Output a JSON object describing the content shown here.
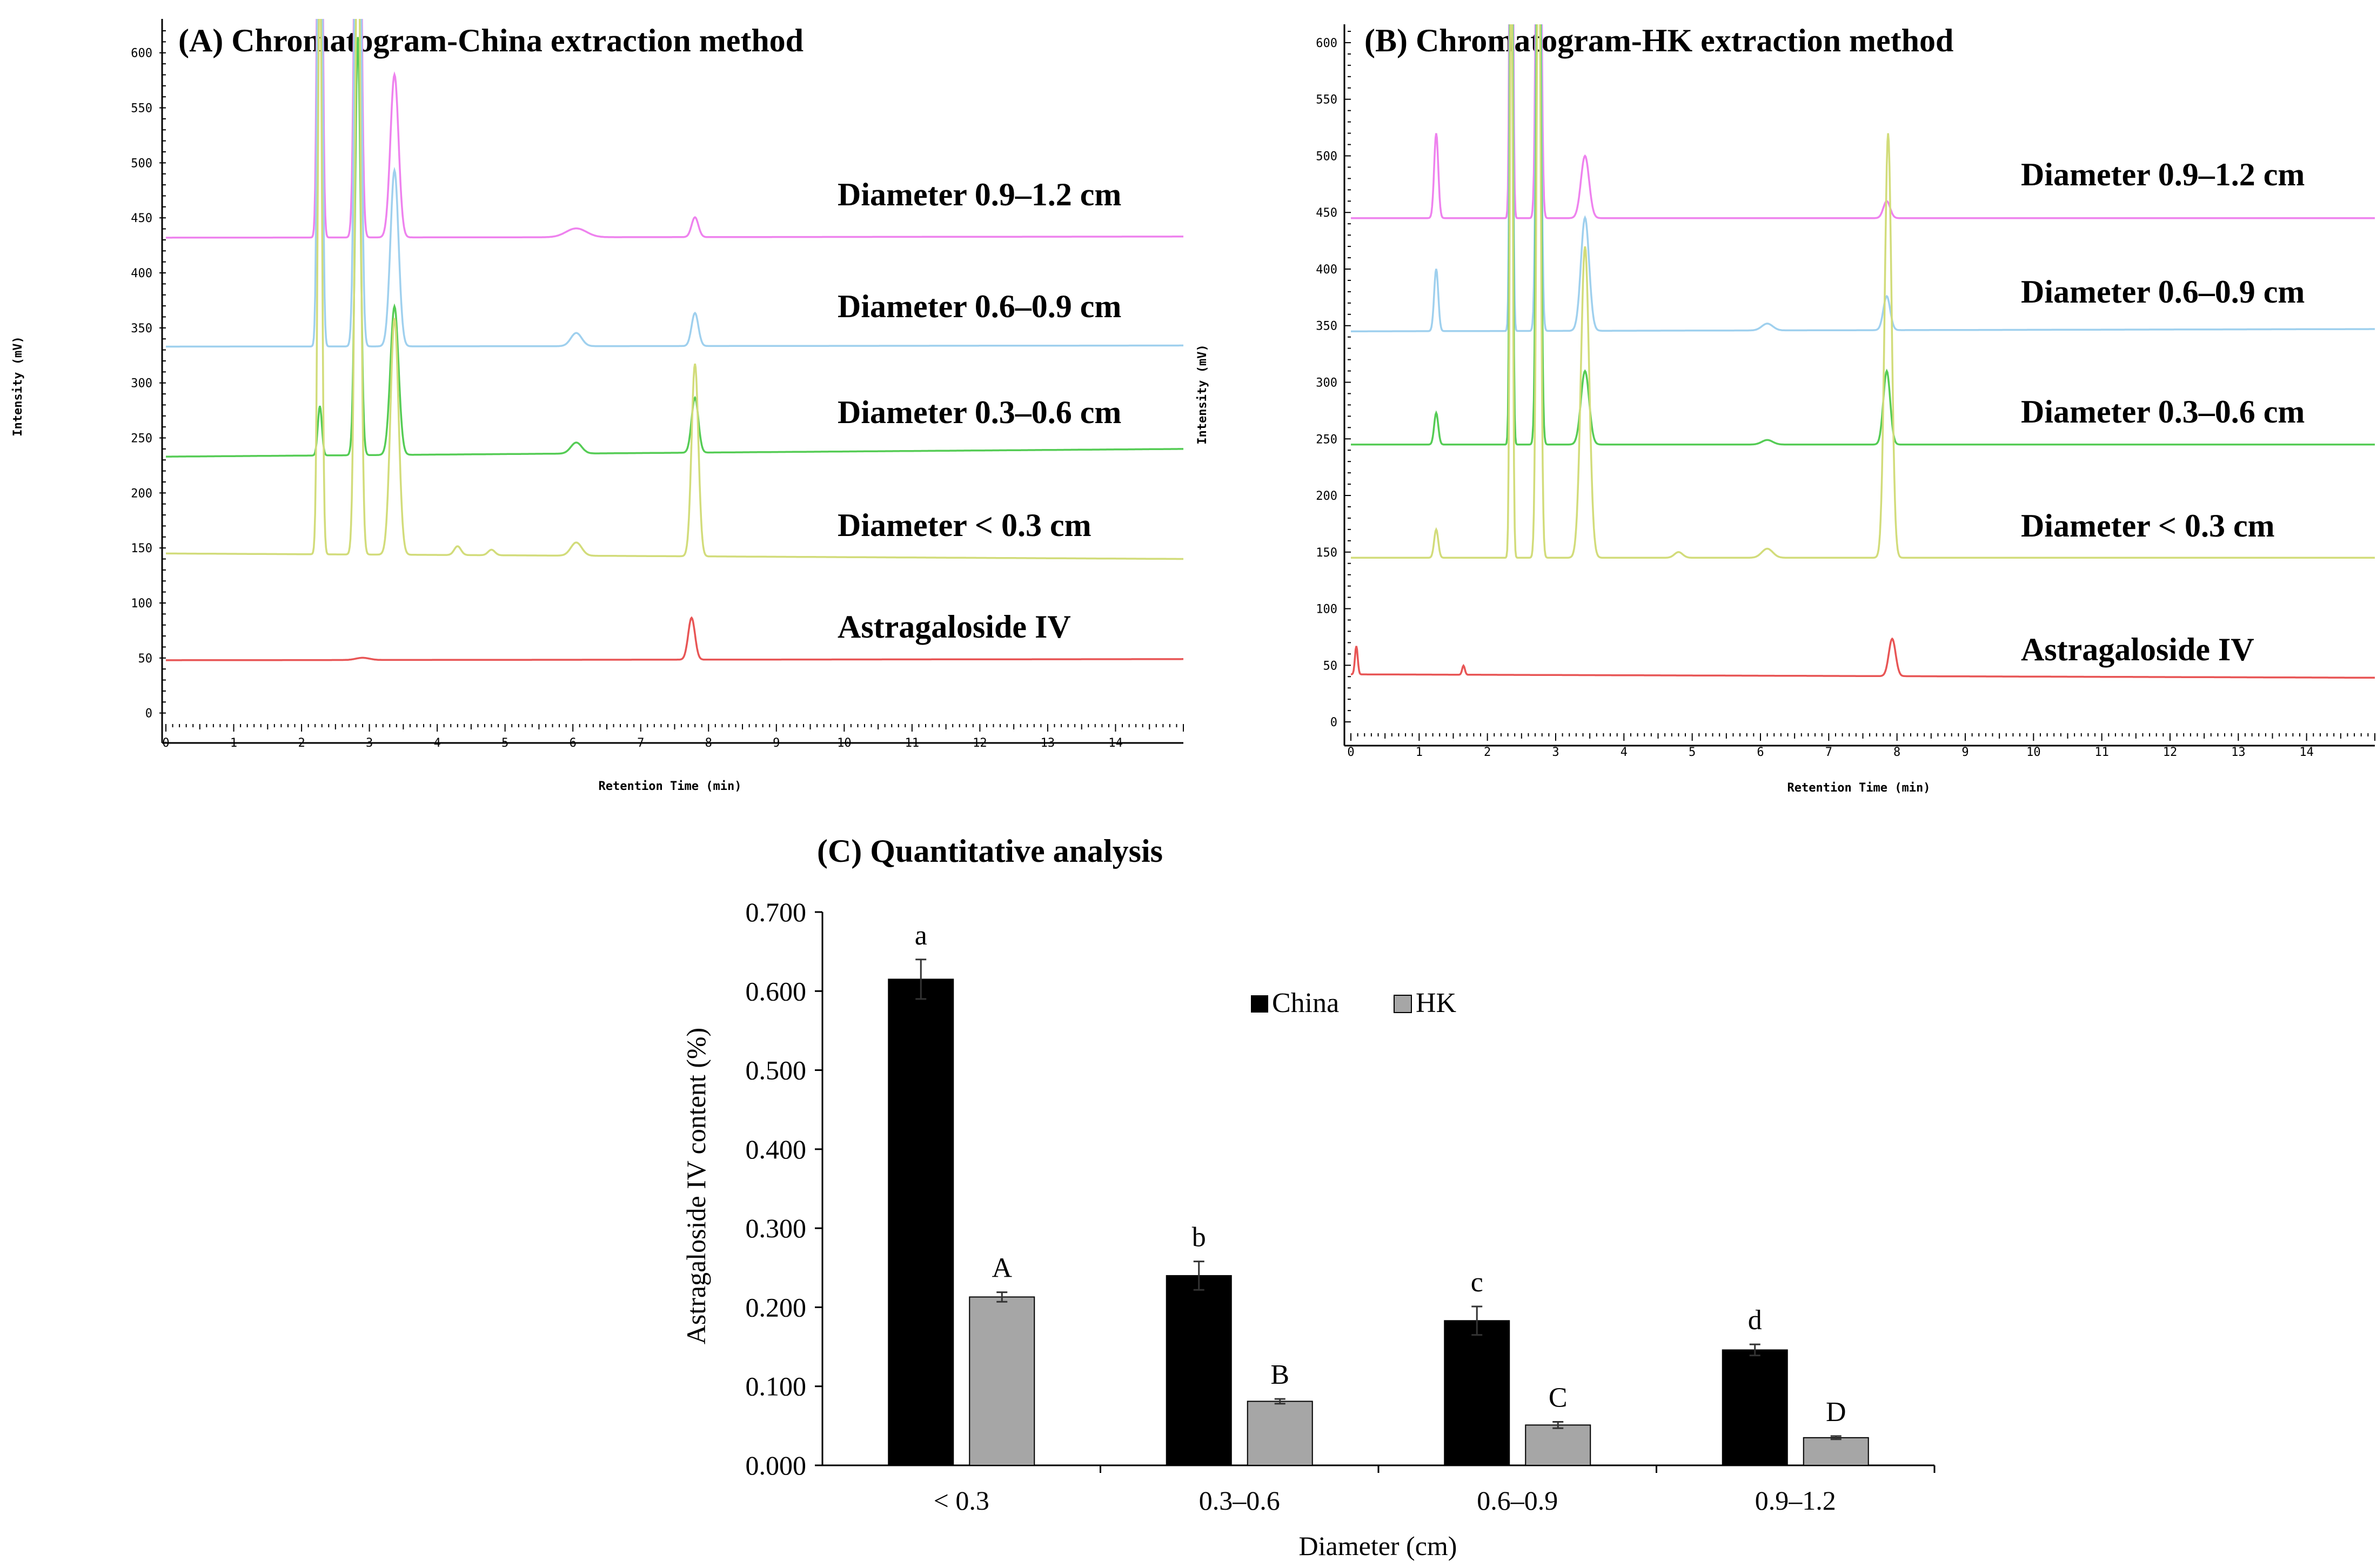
{
  "chart_data": [
    {
      "type": "line",
      "panel": "A",
      "title": "(A) Chromatogram-China  extraction  method",
      "xlabel": "Retention Time (min)",
      "ylabel": "Intensity (mV)",
      "xlim": [
        0,
        15
      ],
      "ylim": [
        -10,
        620
      ],
      "x_ticks": [
        "0",
        "1",
        "2",
        "3",
        "4",
        "5",
        "6",
        "7",
        "8",
        "9",
        "10",
        "11",
        "12",
        "13",
        "14"
      ],
      "y_ticks": [
        "0",
        "50",
        "100",
        "150",
        "200",
        "250",
        "300",
        "350",
        "400",
        "450",
        "500",
        "550",
        "600"
      ],
      "series": [
        {
          "name": "Diameter 0.9–1.2 cm",
          "color": "#ee82ee",
          "baseline": 432,
          "end_baseline": 433,
          "peaks": [
            [
              2.27,
              690,
              0.03
            ],
            [
              2.83,
              620,
              0.04
            ],
            [
              3.37,
              148,
              0.06
            ],
            [
              6.05,
              8,
              0.15
            ],
            [
              7.8,
              18,
              0.05
            ]
          ]
        },
        {
          "name": "Diameter 0.6–0.9 cm",
          "color": "#9fd0ee",
          "baseline": 333,
          "end_baseline": 334,
          "peaks": [
            [
              2.27,
              690,
              0.03
            ],
            [
              2.83,
              700,
              0.04
            ],
            [
              3.37,
              160,
              0.06
            ],
            [
              6.05,
              12,
              0.08
            ],
            [
              7.8,
              30,
              0.05
            ]
          ]
        },
        {
          "name": "Diameter 0.3–0.6 cm",
          "color": "#55cc55",
          "baseline": 233,
          "end_baseline": 240,
          "peaks": [
            [
              2.27,
              45,
              0.03
            ],
            [
              2.83,
              380,
              0.04
            ],
            [
              3.37,
              135,
              0.06
            ],
            [
              6.05,
              10,
              0.08
            ],
            [
              7.8,
              50,
              0.05
            ]
          ]
        },
        {
          "name": "Diameter < 0.3 cm",
          "color": "#d2dc7a",
          "baseline": 145,
          "end_baseline": 140,
          "peaks": [
            [
              2.27,
              560,
              0.03
            ],
            [
              2.83,
              620,
              0.04
            ],
            [
              3.37,
              215,
              0.06
            ],
            [
              4.3,
              8,
              0.05
            ],
            [
              4.8,
              5,
              0.05
            ],
            [
              6.05,
              12,
              0.08
            ],
            [
              7.8,
              175,
              0.05
            ]
          ]
        },
        {
          "name": "Astragaloside IV",
          "color": "#e85555",
          "baseline": 48,
          "end_baseline": 49,
          "peaks": [
            [
              2.9,
              2,
              0.1
            ],
            [
              7.75,
              38,
              0.05
            ]
          ]
        }
      ]
    },
    {
      "type": "line",
      "panel": "B",
      "title": "(B) Chromatogram-HK extraction method",
      "xlabel": "Retention Time (min)",
      "ylabel": "Intensity (mV)",
      "xlim": [
        0,
        15
      ],
      "ylim": [
        -10,
        610
      ],
      "x_ticks": [
        "0",
        "1",
        "2",
        "3",
        "4",
        "5",
        "6",
        "7",
        "8",
        "9",
        "10",
        "11",
        "12",
        "13",
        "14"
      ],
      "y_ticks": [
        "0",
        "50",
        "100",
        "150",
        "200",
        "250",
        "300",
        "350",
        "400",
        "450",
        "500",
        "550",
        "600"
      ],
      "series": [
        {
          "name": "Diameter 0.9–1.2 cm",
          "color": "#ee82ee",
          "baseline": 445,
          "end_baseline": 445,
          "peaks": [
            [
              1.25,
              75,
              0.03
            ],
            [
              2.35,
              600,
              0.02
            ],
            [
              2.75,
              600,
              0.03
            ],
            [
              3.43,
              55,
              0.06
            ],
            [
              7.85,
              15,
              0.05
            ]
          ]
        },
        {
          "name": "Diameter 0.6–0.9 cm",
          "color": "#9fd0ee",
          "baseline": 345,
          "end_baseline": 347,
          "peaks": [
            [
              1.25,
              55,
              0.03
            ],
            [
              2.35,
              600,
              0.02
            ],
            [
              2.75,
              600,
              0.03
            ],
            [
              3.43,
              100,
              0.06
            ],
            [
              6.1,
              6,
              0.08
            ],
            [
              7.85,
              30,
              0.05
            ]
          ]
        },
        {
          "name": "Diameter 0.3–0.6 cm",
          "color": "#55cc55",
          "baseline": 245,
          "end_baseline": 245,
          "peaks": [
            [
              1.25,
              28,
              0.03
            ],
            [
              2.35,
              600,
              0.02
            ],
            [
              2.75,
              600,
              0.03
            ],
            [
              3.43,
              65,
              0.06
            ],
            [
              6.1,
              4,
              0.08
            ],
            [
              7.85,
              65,
              0.05
            ]
          ]
        },
        {
          "name": "Diameter < 0.3 cm",
          "color": "#d2dc7a",
          "baseline": 145,
          "end_baseline": 145,
          "peaks": [
            [
              1.25,
              25,
              0.03
            ],
            [
              2.35,
              600,
              0.02
            ],
            [
              2.75,
              600,
              0.03
            ],
            [
              3.43,
              275,
              0.06
            ],
            [
              4.8,
              5,
              0.06
            ],
            [
              6.1,
              8,
              0.08
            ],
            [
              7.87,
              375,
              0.05
            ]
          ]
        },
        {
          "name": "Astragaloside IV",
          "color": "#e85555",
          "baseline": 42,
          "end_baseline": 39,
          "peaks": [
            [
              0.08,
              25,
              0.02
            ],
            [
              1.65,
              8,
              0.02
            ],
            [
              7.93,
              33,
              0.05
            ]
          ]
        }
      ]
    },
    {
      "type": "bar",
      "panel": "C",
      "title": "(C) Quantitative analysis",
      "xlabel": "Diameter (cm)",
      "ylabel": "Astragaloside IV content (%)",
      "ylim": [
        0,
        0.7
      ],
      "y_ticks": [
        "0.000",
        "0.100",
        "0.200",
        "0.300",
        "0.400",
        "0.500",
        "0.600",
        "0.700"
      ],
      "categories": [
        "< 0.3",
        "0.3–0.6",
        "0.6–0.9",
        "0.9–1.2"
      ],
      "legend_position": "top-center",
      "series": [
        {
          "name": "China",
          "color": "#000000",
          "values": [
            0.615,
            0.24,
            0.183,
            0.146
          ],
          "errors": [
            0.025,
            0.018,
            0.018,
            0.007
          ],
          "labels": [
            "a",
            "b",
            "c",
            "d"
          ]
        },
        {
          "name": "HK",
          "color": "#a6a6a6",
          "values": [
            0.213,
            0.081,
            0.051,
            0.035
          ],
          "errors": [
            0.006,
            0.003,
            0.004,
            0.002
          ],
          "labels": [
            "A",
            "B",
            "C",
            "D"
          ]
        }
      ]
    }
  ]
}
